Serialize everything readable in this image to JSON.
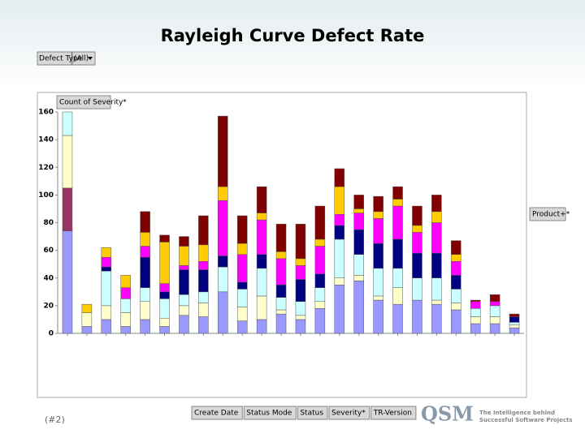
{
  "chart_data": {
    "type": "stacked_bar",
    "title": "Rayleigh Curve Defect Rate",
    "categories": [
      null,
      null,
      null,
      null,
      null,
      null,
      null,
      null,
      null,
      null,
      null,
      null,
      null,
      null,
      null,
      null,
      null,
      null,
      null,
      null,
      null,
      null,
      null,
      null
    ],
    "series": [
      {
        "color": "#9999ff",
        "values": [
          74,
          5,
          10,
          5,
          10,
          5,
          13,
          12,
          30,
          9,
          10,
          14,
          10,
          18,
          35,
          38,
          24,
          21,
          24,
          21,
          17,
          7,
          7,
          4
        ]
      },
      {
        "color": "#993366",
        "values": [
          31,
          0,
          0,
          0,
          0,
          0,
          0,
          0,
          0,
          0,
          0,
          0,
          0,
          0,
          0,
          0,
          0,
          0,
          0,
          0,
          0,
          0,
          0,
          0
        ]
      },
      {
        "color": "#ffffcc",
        "values": [
          38,
          10,
          10,
          10,
          13,
          6,
          7,
          10,
          0,
          10,
          17,
          3,
          3,
          5,
          5,
          4,
          3,
          12,
          0,
          3,
          5,
          5,
          5,
          2
        ]
      },
      {
        "color": "#ccffff",
        "values": [
          17,
          0,
          25,
          10,
          10,
          14,
          8,
          8,
          18,
          13,
          20,
          9,
          10,
          10,
          28,
          15,
          20,
          14,
          16,
          16,
          10,
          6,
          8,
          2
        ]
      },
      {
        "color": "#000080",
        "values": [
          0,
          0,
          3,
          0,
          22,
          5,
          18,
          16,
          8,
          5,
          10,
          9,
          16,
          10,
          10,
          18,
          18,
          21,
          18,
          18,
          10,
          0,
          0,
          4
        ]
      },
      {
        "color": "#ff00ff",
        "values": [
          0,
          0,
          7,
          8,
          8,
          6,
          3,
          6,
          40,
          20,
          25,
          19,
          10,
          20,
          8,
          12,
          18,
          24,
          15,
          22,
          10,
          5,
          3,
          0
        ]
      },
      {
        "color": "#ffcc00",
        "values": [
          0,
          6,
          7,
          9,
          10,
          30,
          14,
          12,
          10,
          8,
          5,
          5,
          5,
          5,
          20,
          3,
          5,
          5,
          5,
          8,
          5,
          0,
          0,
          0
        ]
      },
      {
        "color": "#800000",
        "values": [
          0,
          0,
          0,
          0,
          15,
          5,
          7,
          21,
          51,
          20,
          19,
          20,
          25,
          24,
          13,
          10,
          11,
          9,
          14,
          12,
          10,
          1,
          5,
          2
        ]
      }
    ],
    "ylim": [
      0,
      160
    ],
    "yticks": [
      0,
      20,
      40,
      60,
      80,
      100,
      120,
      140,
      160
    ]
  },
  "page_field": {
    "name": "Defect Type",
    "value": "(All)"
  },
  "data_field": "Count of Severity*",
  "series_field": "Product+*",
  "category_fields": [
    "Create Date",
    "Status Mode",
    "Status",
    "Severity*",
    "TR-Version"
  ],
  "slide_number": "(#2)",
  "logo": {
    "name": "QSM",
    "tagline": [
      "The Intelligence behind",
      "Successful Software Projects"
    ]
  }
}
